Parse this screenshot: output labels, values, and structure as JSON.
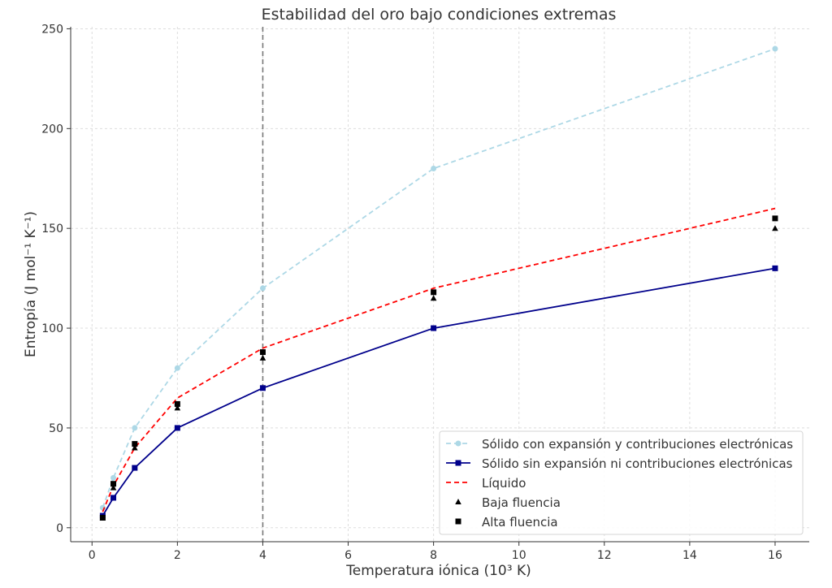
{
  "chart_data": {
    "type": "line",
    "title": "Estabilidad del oro bajo condiciones extremas",
    "xlabel": "Temperatura iónica (10³ K)",
    "ylabel": "Entropía (J mol⁻¹ K⁻¹)",
    "xlim": [
      -0.5,
      16.8
    ],
    "ylim": [
      -7,
      251
    ],
    "xticks": [
      0,
      2,
      4,
      6,
      8,
      10,
      12,
      14,
      16
    ],
    "yticks": [
      0,
      50,
      100,
      150,
      200,
      250
    ],
    "grid": true,
    "legend_position": "bottom-right",
    "vline": {
      "x": 4,
      "color": "#777777",
      "style": "dashed"
    },
    "x": [
      0.25,
      0.5,
      1,
      2,
      4,
      8,
      16
    ],
    "series": [
      {
        "name": "Sólido con expansión y contribuciones electrónicas",
        "values": [
          10,
          25,
          50,
          80,
          120,
          180,
          240
        ],
        "color": "#add8e6",
        "line": "dashed",
        "marker": "circle"
      },
      {
        "name": "Sólido sin expansión ni contribuciones electrónicas",
        "values": [
          6,
          15,
          30,
          50,
          70,
          100,
          130
        ],
        "color": "#00008b",
        "line": "solid",
        "marker": "square"
      },
      {
        "name": "Líquido",
        "values": [
          8,
          21,
          40,
          65,
          90,
          120,
          160
        ],
        "color": "#ff0000",
        "line": "dashed",
        "marker": "none"
      },
      {
        "name": "Baja fluencia",
        "values": [
          5,
          20,
          40,
          60,
          85,
          115,
          150
        ],
        "color": "#000000",
        "line": "none",
        "marker": "triangle"
      },
      {
        "name": "Alta fluencia",
        "values": [
          5,
          22,
          42,
          62,
          88,
          118,
          155
        ],
        "color": "#000000",
        "line": "none",
        "marker": "square"
      }
    ]
  }
}
